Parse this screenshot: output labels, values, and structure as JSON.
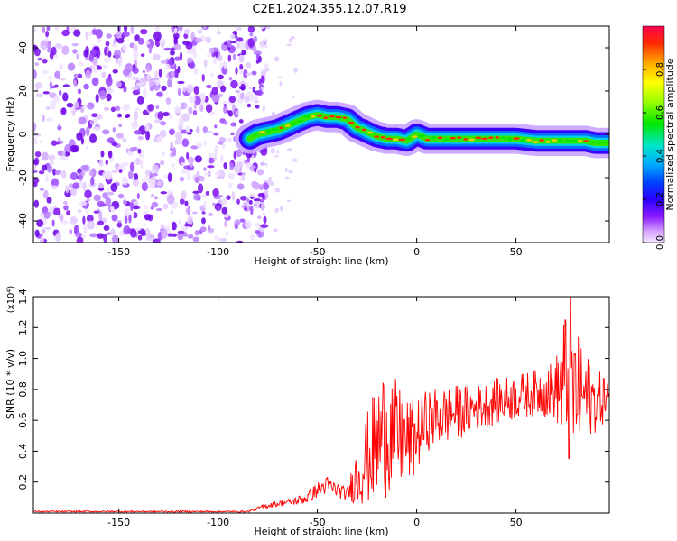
{
  "title": "C2E1.2024.355.12.07.R19",
  "chart_data": [
    {
      "type": "heatmap",
      "xlabel": "Height of straight line (km)",
      "ylabel": "Frequency (Hz)",
      "xlim": [
        -193,
        97
      ],
      "ylim": [
        -50,
        50
      ],
      "x_ticks": [
        -150,
        -100,
        -50,
        0,
        50
      ],
      "y_ticks": [
        -40,
        -20,
        0,
        20,
        40
      ],
      "colorbar": {
        "label": "Normalized spectral amplitude",
        "range": [
          0.0,
          1.0
        ],
        "ticks": [
          "0.0",
          "0.2",
          "0.4",
          "0.6",
          "0.8"
        ],
        "colors": [
          "#f2e6ff",
          "#d8a4ff",
          "#8a1bff",
          "#2a00ff",
          "#0044ff",
          "#00aaff",
          "#00e6c8",
          "#00e600",
          "#99ff00",
          "#ffff00",
          "#ffaa00",
          "#ff2a00",
          "#ff0050"
        ]
      },
      "noise_region_x": [
        -193,
        -78
      ],
      "signal_ridge": {
        "x": [
          -84,
          -80,
          -75,
          -70,
          -65,
          -60,
          -55,
          -50,
          -45,
          -40,
          -35,
          -30,
          -27,
          -25,
          -20,
          -15,
          -10,
          -5,
          0,
          5,
          10,
          20,
          30,
          40,
          50,
          60,
          70,
          75,
          80,
          85,
          90,
          97
        ],
        "y": [
          -2,
          0,
          1,
          2,
          4,
          6,
          8,
          9,
          8,
          8,
          7,
          3,
          2,
          1,
          -1,
          -2,
          -2,
          -3,
          0,
          -2,
          -2,
          -2,
          -2,
          -2,
          -2,
          -3,
          -3,
          -3,
          -3,
          -3,
          -4,
          -4
        ]
      }
    },
    {
      "type": "line",
      "xlabel": "Height of straight line (km)",
      "ylabel": "SNR (10 * v/v)",
      "y_multiplier": "(x10⁴)",
      "xlim": [
        -193,
        97
      ],
      "ylim": [
        0.0,
        1.4
      ],
      "x_ticks": [
        -150,
        -100,
        -50,
        0,
        50
      ],
      "y_ticks": [
        "0.2",
        "0.4",
        "0.6",
        "0.8",
        "1.0",
        "1.2",
        "1.4"
      ],
      "series": [
        {
          "color": "#ff0000",
          "x": [
            -193,
            -150,
            -100,
            -85,
            -80,
            -75,
            -70,
            -65,
            -60,
            -55,
            -50,
            -45,
            -40,
            -35,
            -30,
            -25,
            -20,
            -15,
            -10,
            -5,
            0,
            5,
            10,
            20,
            30,
            40,
            50,
            60,
            70,
            75,
            78,
            80,
            85,
            90,
            97
          ],
          "y": [
            0.01,
            0.01,
            0.01,
            0.01,
            0.03,
            0.05,
            0.06,
            0.07,
            0.08,
            0.1,
            0.15,
            0.18,
            0.15,
            0.12,
            0.25,
            0.35,
            0.45,
            0.55,
            0.5,
            0.45,
            0.5,
            0.6,
            0.62,
            0.65,
            0.68,
            0.72,
            0.75,
            0.78,
            0.8,
            0.85,
            0.8,
            0.78,
            0.76,
            0.72,
            0.76
          ],
          "amplitude": [
            0.005,
            0.005,
            0.005,
            0.005,
            0.01,
            0.02,
            0.02,
            0.02,
            0.03,
            0.04,
            0.05,
            0.06,
            0.05,
            0.04,
            0.2,
            0.3,
            0.4,
            0.45,
            0.35,
            0.3,
            0.25,
            0.2,
            0.2,
            0.18,
            0.15,
            0.15,
            0.15,
            0.15,
            0.2,
            0.5,
            0.65,
            0.4,
            0.3,
            0.2,
            0.15
          ]
        }
      ]
    }
  ]
}
